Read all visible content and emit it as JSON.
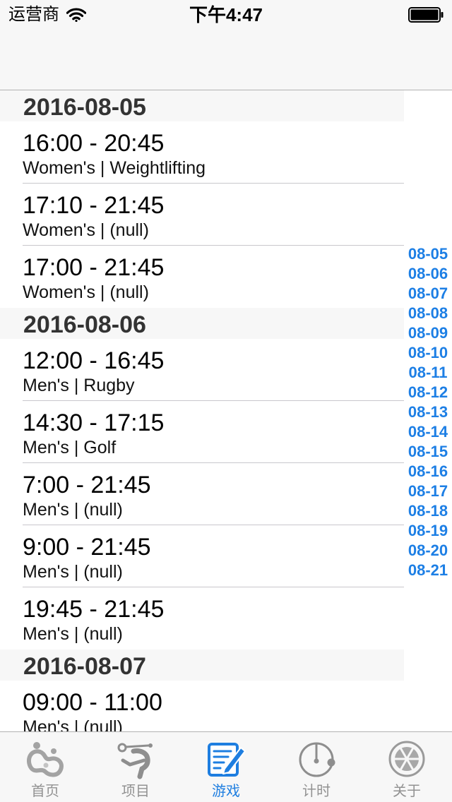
{
  "status_bar": {
    "carrier": "运营商",
    "time": "下午4:47",
    "wifi_icon": "wifi-icon",
    "battery_icon": "battery-icon"
  },
  "sections": [
    {
      "header": "2016-08-05",
      "rows": [
        {
          "time": "16:00 - 20:45",
          "detail": "Women's | Weightlifting"
        },
        {
          "time": "17:10 - 21:45",
          "detail": "Women's | (null)"
        },
        {
          "time": "17:00 - 21:45",
          "detail": "Women's | (null)"
        }
      ]
    },
    {
      "header": "2016-08-06",
      "rows": [
        {
          "time": "12:00 - 16:45",
          "detail": "Men's | Rugby"
        },
        {
          "time": "14:30 - 17:15",
          "detail": "Men's | Golf"
        },
        {
          "time": "7:00 - 21:45",
          "detail": "Men's | (null)"
        },
        {
          "time": "9:00 - 21:45",
          "detail": "Men's | (null)"
        },
        {
          "time": "19:45 - 21:45",
          "detail": "Men's | (null)"
        }
      ]
    },
    {
      "header": "2016-08-07",
      "rows": [
        {
          "time": "09:00 - 11:00",
          "detail": "Men's | (null)"
        }
      ]
    }
  ],
  "section_index": [
    "08-05",
    "08-06",
    "08-07",
    "08-08",
    "08-09",
    "08-10",
    "08-11",
    "08-12",
    "08-13",
    "08-14",
    "08-15",
    "08-16",
    "08-17",
    "08-18",
    "08-19",
    "08-20",
    "08-21"
  ],
  "tab_bar": {
    "tabs": [
      {
        "label": "首页",
        "icon": "rio-logo-icon",
        "selected": false
      },
      {
        "label": "项目",
        "icon": "athlete-icon",
        "selected": false
      },
      {
        "label": "游戏",
        "icon": "notepad-pencil-icon",
        "selected": true
      },
      {
        "label": "计时",
        "icon": "stopwatch-icon",
        "selected": false
      },
      {
        "label": "关于",
        "icon": "citrus-slice-icon",
        "selected": false
      }
    ]
  },
  "colors": {
    "accent": "#1e7ee0",
    "index_text": "#1d7fe5",
    "tab_inactive": "#929292",
    "section_header_bg": "#f7f7f7",
    "separator": "#c8c7cc"
  }
}
